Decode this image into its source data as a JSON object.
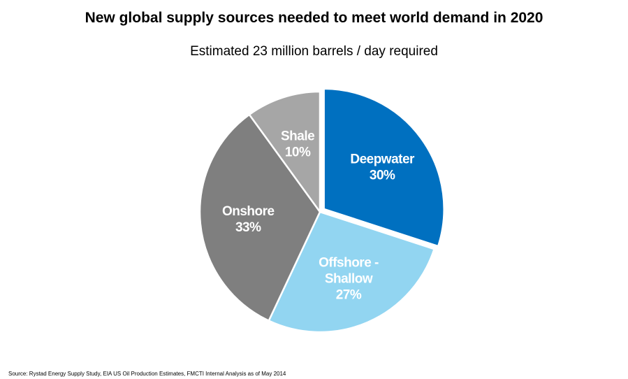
{
  "chart_data": {
    "type": "pie",
    "title": "New global supply sources needed to meet world demand in 2020",
    "subtitle": "Estimated 23 million barrels / day required",
    "slices": [
      {
        "name": "Deepwater",
        "label_lines": [
          "Deepwater"
        ],
        "value": 30,
        "value_label": "30%",
        "color": "#0070C0",
        "exploded": true
      },
      {
        "name": "Offshore - Shallow",
        "label_lines": [
          "Offshore -",
          "Shallow"
        ],
        "value": 27,
        "value_label": "27%",
        "color": "#92D5F1",
        "exploded": false
      },
      {
        "name": "Onshore",
        "label_lines": [
          "Onshore"
        ],
        "value": 33,
        "value_label": "33%",
        "color": "#7F7F7F",
        "exploded": false
      },
      {
        "name": "Shale",
        "label_lines": [
          "Shale"
        ],
        "value": 10,
        "value_label": "10%",
        "color": "#A6A6A6",
        "exploded": false
      }
    ],
    "source": "Source: Rystad  Energy Supply Study, EIA US Oil Production Estimates,  FMCTI Internal Analysis as of May 2014"
  }
}
